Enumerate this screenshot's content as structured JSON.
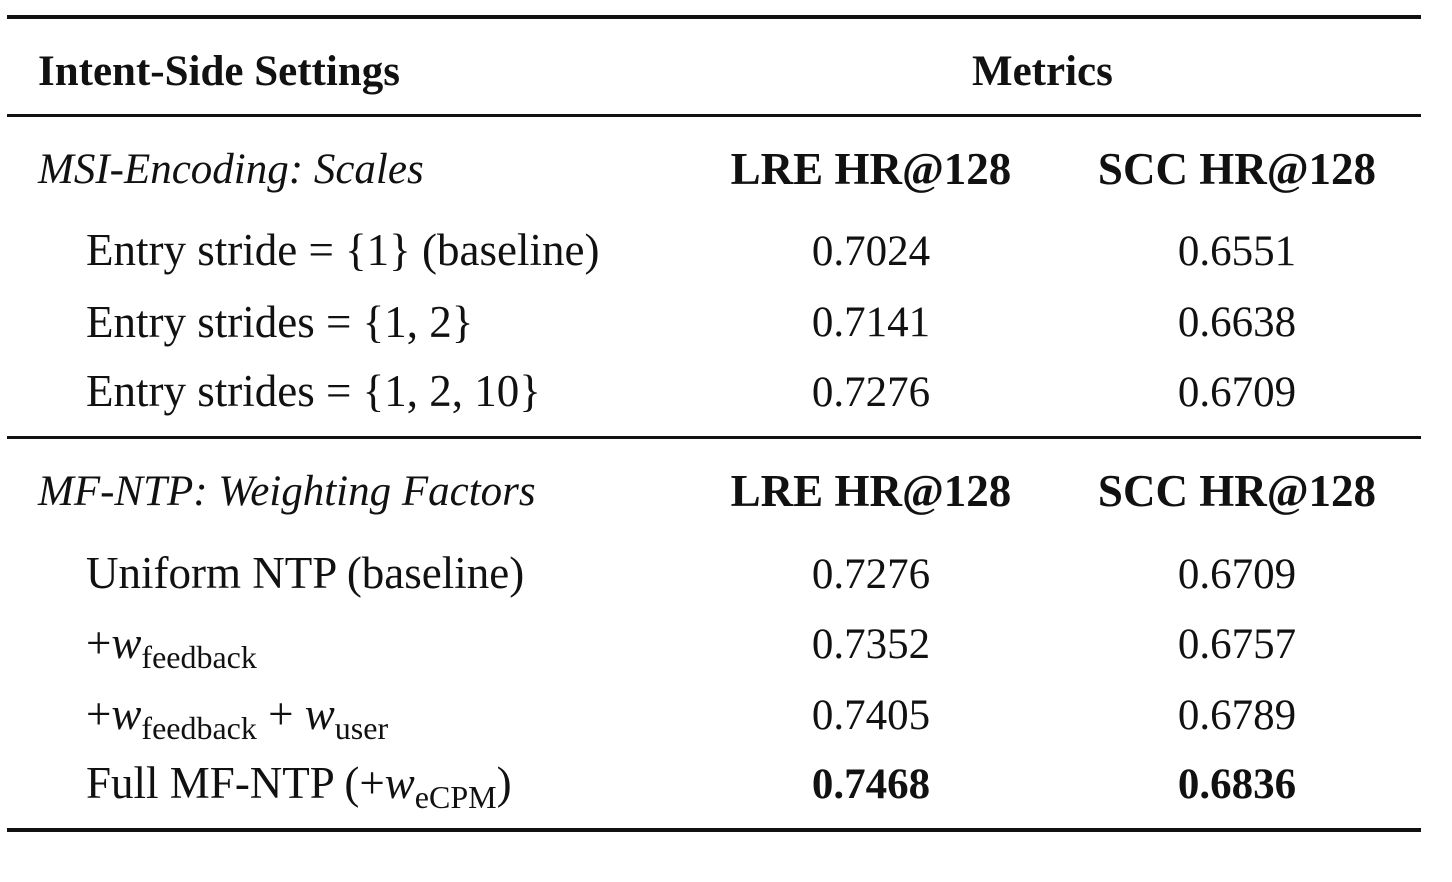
{
  "table": {
    "header": {
      "settings": "Intent-Side Settings",
      "metrics": "Metrics"
    },
    "sections": [
      {
        "title": "MSI-Encoding: Scales",
        "col1": "LRE HR@128",
        "col2": "SCC HR@128",
        "rows": [
          {
            "label": "Entry stride = {1} (baseline)",
            "lre": "0.7024",
            "scc": "0.6551"
          },
          {
            "label": "Entry strides = {1, 2}",
            "lre": "0.7141",
            "scc": "0.6638"
          },
          {
            "label": "Entry strides = {1, 2, 10}",
            "lre": "0.7276",
            "scc": "0.6709"
          }
        ]
      },
      {
        "title": "MF-NTP: Weighting Factors",
        "col1": "LRE HR@128",
        "col2": "SCC HR@128",
        "rows": [
          {
            "label": "Uniform NTP (baseline)",
            "lre": "0.7276",
            "scc": "0.6709"
          },
          {
            "plus": "+",
            "w": "w",
            "sub": "feedback",
            "lre": "0.7352",
            "scc": "0.6757"
          },
          {
            "plus": "+",
            "w": "w",
            "sub": "feedback",
            "plus2": " + ",
            "w2": "w",
            "sub2": "user",
            "lre": "0.7405",
            "scc": "0.6789"
          },
          {
            "prefix": "Full MF-NTP (+",
            "w": "w",
            "sub": "eCPM",
            "suffix": ")",
            "lre": "0.7468",
            "scc": "0.6836"
          }
        ]
      }
    ]
  }
}
